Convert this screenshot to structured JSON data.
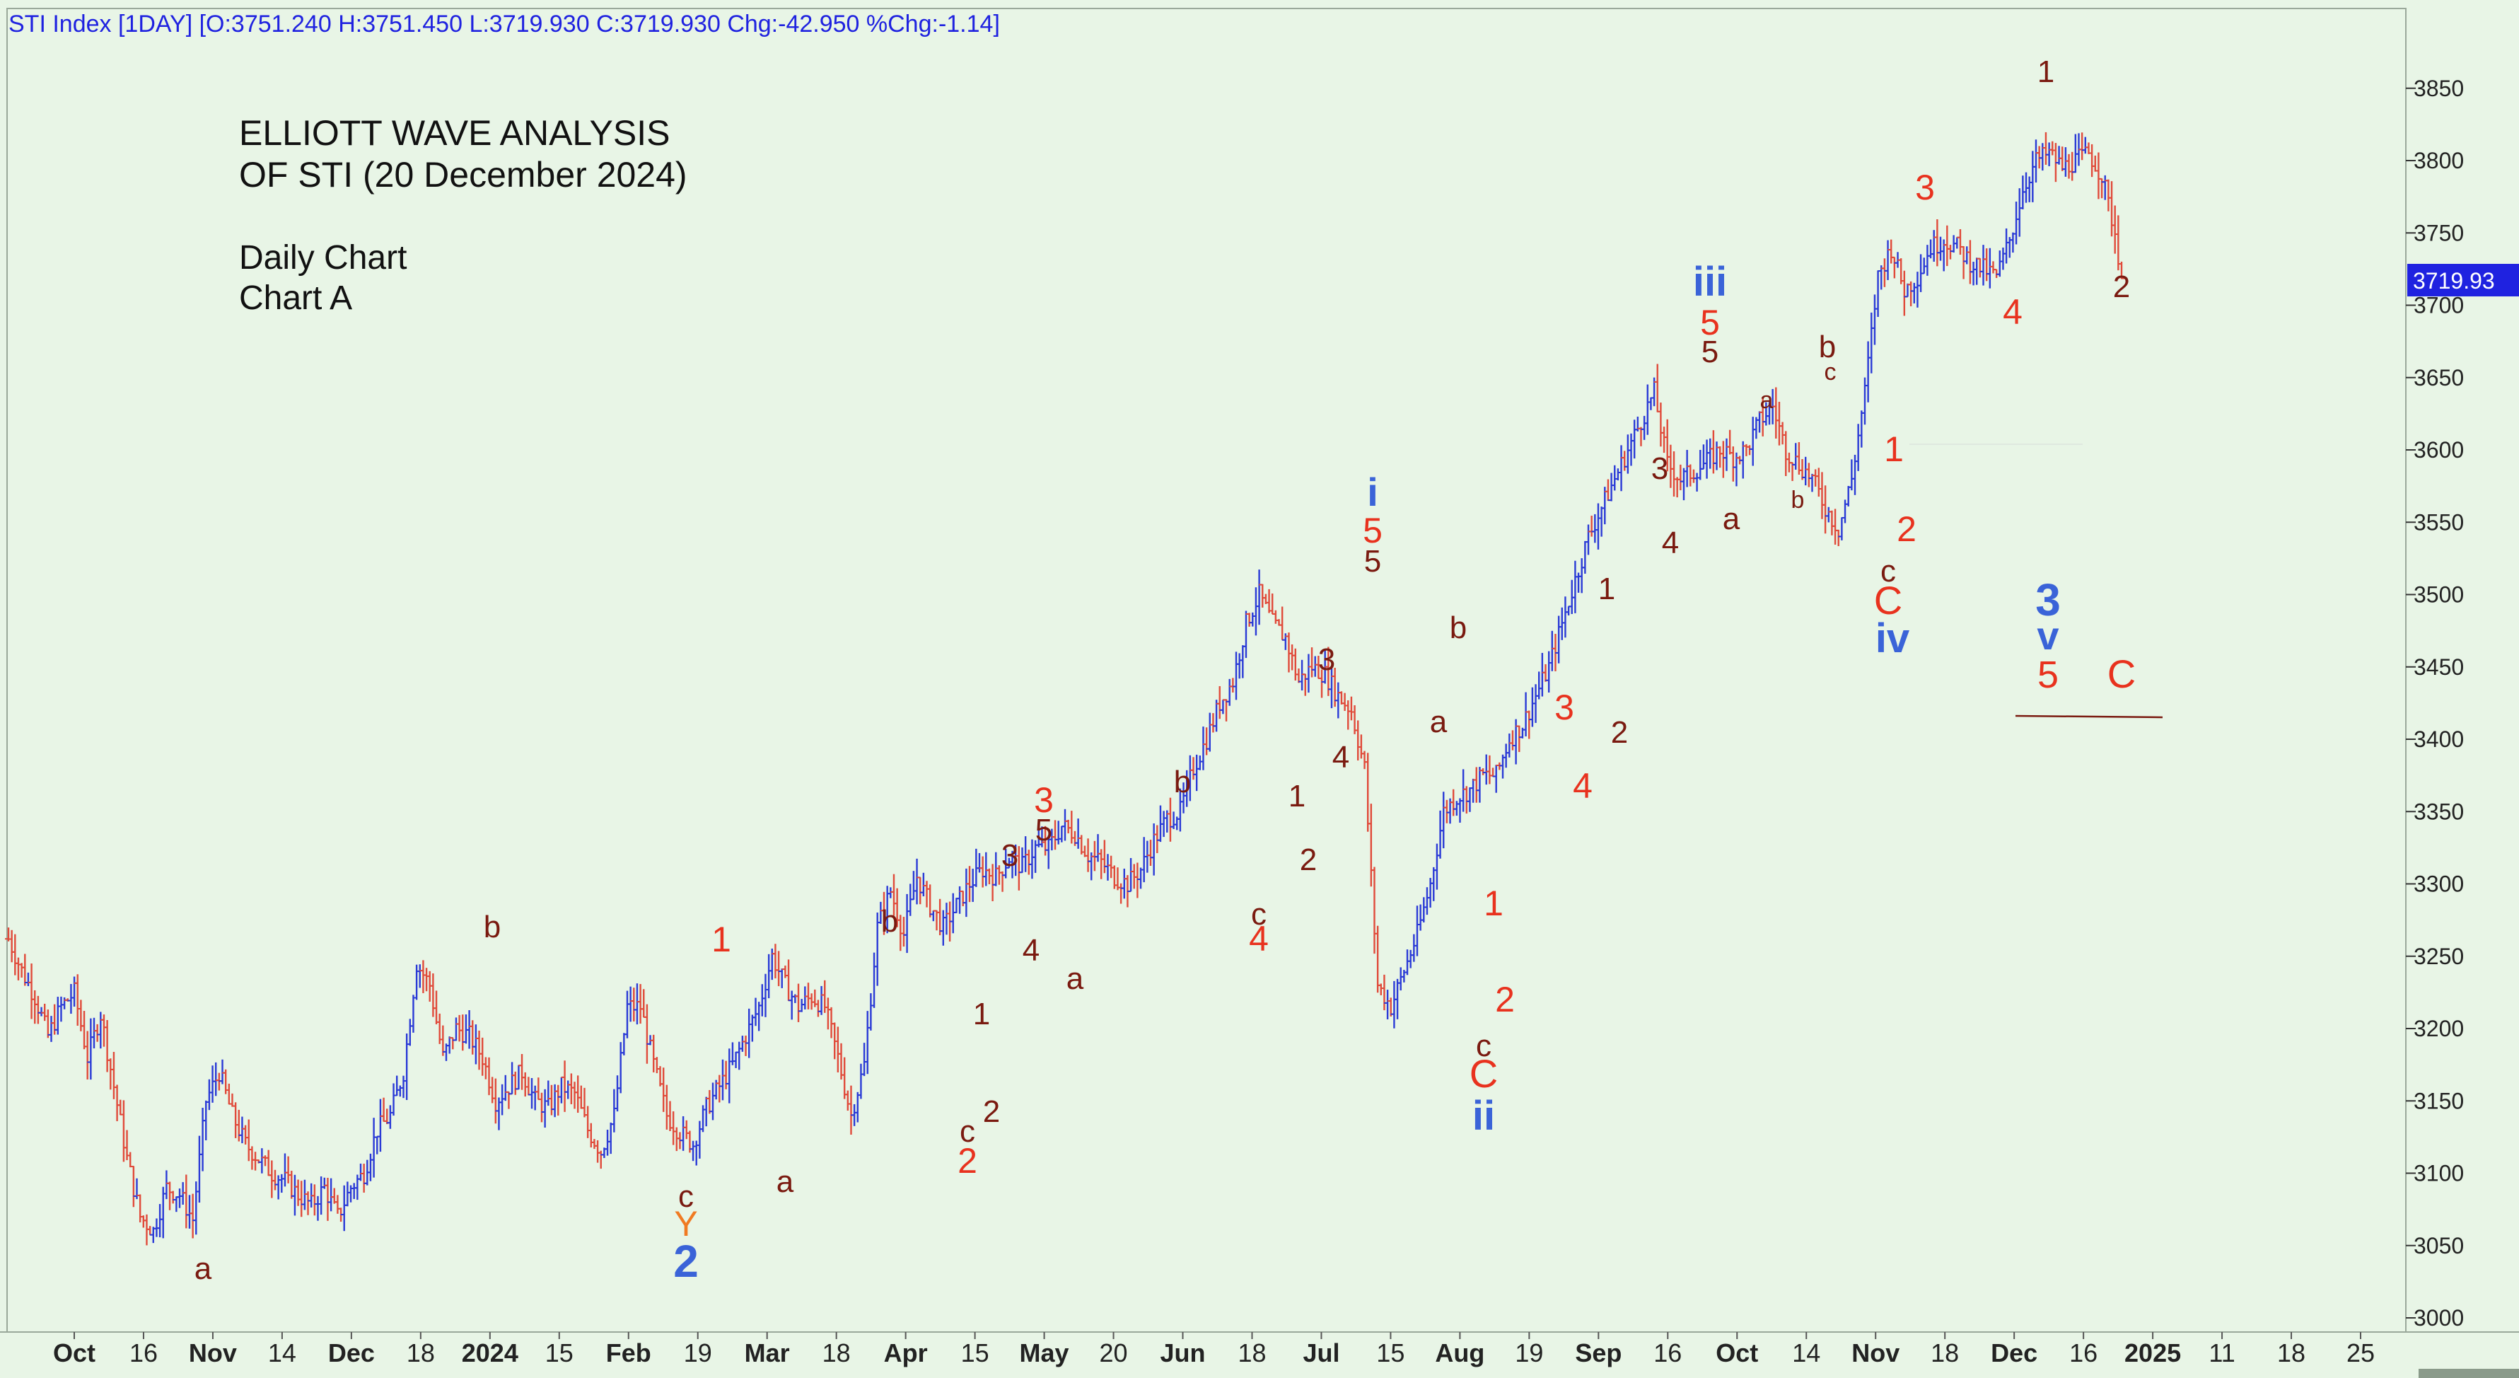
{
  "header": {
    "info": "STI Index [1DAY] [O:3751.240 H:3751.450 L:3719.930 C:3719.930 Chg:-42.950 %Chg:-1.14]"
  },
  "annotation_text": {
    "line1": "ELLIOTT WAVE ANALYSIS",
    "line2": "OF STI (20 December 2024)",
    "line3": "Daily Chart",
    "line4": "Chart A"
  },
  "last_price_tag": "3719.93",
  "colors": {
    "background": "#e8f5e6",
    "up_bar": "#2a3ad6",
    "down_bar": "#e04a3a",
    "label_dark": "#7a1a10",
    "label_red": "#e8321e",
    "label_blue": "#3a63d8",
    "label_orange": "#f07a22",
    "price_tag_bg": "#1f22e0",
    "header_text": "#1f22e0"
  },
  "chart_data": {
    "type": "ohlc",
    "title": "STI Index [1DAY]",
    "ylim": [
      3000,
      3880
    ],
    "y_ticks": [
      3000,
      3050,
      3100,
      3150,
      3200,
      3250,
      3300,
      3350,
      3400,
      3450,
      3500,
      3550,
      3600,
      3650,
      3700,
      3750,
      3800,
      3850
    ],
    "x_tick_labels": [
      {
        "label": "Oct",
        "bold": true
      },
      {
        "label": "16",
        "bold": false
      },
      {
        "label": "Nov",
        "bold": true
      },
      {
        "label": "14",
        "bold": false
      },
      {
        "label": "Dec",
        "bold": true
      },
      {
        "label": "18",
        "bold": false
      },
      {
        "label": "2024",
        "bold": true
      },
      {
        "label": "15",
        "bold": false
      },
      {
        "label": "Feb",
        "bold": true
      },
      {
        "label": "19",
        "bold": false
      },
      {
        "label": "Mar",
        "bold": true
      },
      {
        "label": "18",
        "bold": false
      },
      {
        "label": "Apr",
        "bold": true
      },
      {
        "label": "15",
        "bold": false
      },
      {
        "label": "May",
        "bold": true
      },
      {
        "label": "20",
        "bold": false
      },
      {
        "label": "Jun",
        "bold": true
      },
      {
        "label": "18",
        "bold": false
      },
      {
        "label": "Jul",
        "bold": true
      },
      {
        "label": "15",
        "bold": false
      },
      {
        "label": "Aug",
        "bold": true
      },
      {
        "label": "19",
        "bold": false
      },
      {
        "label": "Sep",
        "bold": true
      },
      {
        "label": "16",
        "bold": false
      },
      {
        "label": "Oct",
        "bold": true
      },
      {
        "label": "14",
        "bold": false
      },
      {
        "label": "Nov",
        "bold": true
      },
      {
        "label": "18",
        "bold": false
      },
      {
        "label": "Dec",
        "bold": true
      },
      {
        "label": "16",
        "bold": false
      },
      {
        "label": "2025",
        "bold": true
      },
      {
        "label": "11",
        "bold": false
      },
      {
        "label": "18",
        "bold": false
      },
      {
        "label": "25",
        "bold": false
      }
    ],
    "last_price": 3719.93,
    "path_points": [
      [
        0,
        3262
      ],
      [
        4,
        3240
      ],
      [
        8,
        3222
      ],
      [
        12,
        3195
      ],
      [
        16,
        3215
      ],
      [
        20,
        3225
      ],
      [
        24,
        3180
      ],
      [
        28,
        3210
      ],
      [
        32,
        3160
      ],
      [
        36,
        3110
      ],
      [
        40,
        3070
      ],
      [
        44,
        3060
      ],
      [
        48,
        3090
      ],
      [
        52,
        3085
      ],
      [
        56,
        3068
      ],
      [
        60,
        3150
      ],
      [
        64,
        3170
      ],
      [
        68,
        3140
      ],
      [
        72,
        3120
      ],
      [
        76,
        3110
      ],
      [
        80,
        3100
      ],
      [
        84,
        3095
      ],
      [
        88,
        3085
      ],
      [
        92,
        3078
      ],
      [
        96,
        3090
      ],
      [
        100,
        3070
      ],
      [
        104,
        3090
      ],
      [
        108,
        3100
      ],
      [
        112,
        3130
      ],
      [
        116,
        3140
      ],
      [
        120,
        3170
      ],
      [
        124,
        3245
      ],
      [
        128,
        3230
      ],
      [
        132,
        3180
      ],
      [
        136,
        3200
      ],
      [
        140,
        3195
      ],
      [
        144,
        3180
      ],
      [
        148,
        3150
      ],
      [
        152,
        3160
      ],
      [
        156,
        3170
      ],
      [
        160,
        3150
      ],
      [
        164,
        3145
      ],
      [
        168,
        3160
      ],
      [
        172,
        3155
      ],
      [
        176,
        3130
      ],
      [
        180,
        3115
      ],
      [
        184,
        3140
      ],
      [
        188,
        3215
      ],
      [
        192,
        3215
      ],
      [
        196,
        3175
      ],
      [
        200,
        3140
      ],
      [
        204,
        3128
      ],
      [
        208,
        3120
      ],
      [
        212,
        3145
      ],
      [
        216,
        3160
      ],
      [
        220,
        3175
      ],
      [
        224,
        3195
      ],
      [
        228,
        3215
      ],
      [
        232,
        3250
      ],
      [
        236,
        3230
      ],
      [
        240,
        3215
      ],
      [
        244,
        3222
      ],
      [
        248,
        3215
      ],
      [
        252,
        3180
      ],
      [
        256,
        3140
      ],
      [
        260,
        3175
      ],
      [
        264,
        3270
      ],
      [
        268,
        3295
      ],
      [
        272,
        3265
      ],
      [
        276,
        3305
      ],
      [
        280,
        3285
      ],
      [
        284,
        3270
      ],
      [
        288,
        3285
      ],
      [
        292,
        3300
      ],
      [
        296,
        3310
      ],
      [
        300,
        3305
      ],
      [
        304,
        3318
      ],
      [
        308,
        3312
      ],
      [
        312,
        3325
      ],
      [
        316,
        3325
      ],
      [
        320,
        3340
      ],
      [
        324,
        3335
      ],
      [
        328,
        3320
      ],
      [
        332,
        3315
      ],
      [
        336,
        3305
      ],
      [
        340,
        3300
      ],
      [
        344,
        3310
      ],
      [
        348,
        3330
      ],
      [
        352,
        3345
      ],
      [
        356,
        3350
      ],
      [
        360,
        3380
      ],
      [
        364,
        3400
      ],
      [
        368,
        3425
      ],
      [
        372,
        3440
      ],
      [
        376,
        3480
      ],
      [
        380,
        3500
      ],
      [
        384,
        3480
      ],
      [
        388,
        3470
      ],
      [
        392,
        3440
      ],
      [
        396,
        3450
      ],
      [
        400,
        3445
      ],
      [
        404,
        3430
      ],
      [
        408,
        3420
      ],
      [
        412,
        3380
      ],
      [
        416,
        3230
      ],
      [
        420,
        3215
      ],
      [
        424,
        3240
      ],
      [
        428,
        3265
      ],
      [
        432,
        3300
      ],
      [
        436,
        3350
      ],
      [
        440,
        3360
      ],
      [
        444,
        3365
      ],
      [
        448,
        3375
      ],
      [
        452,
        3375
      ],
      [
        456,
        3400
      ],
      [
        460,
        3410
      ],
      [
        464,
        3430
      ],
      [
        468,
        3450
      ],
      [
        472,
        3480
      ],
      [
        476,
        3510
      ],
      [
        480,
        3540
      ],
      [
        484,
        3560
      ],
      [
        488,
        3580
      ],
      [
        492,
        3600
      ],
      [
        496,
        3620
      ],
      [
        500,
        3640
      ],
      [
        504,
        3590
      ],
      [
        508,
        3580
      ],
      [
        512,
        3585
      ],
      [
        516,
        3592
      ],
      [
        520,
        3600
      ],
      [
        524,
        3595
      ],
      [
        528,
        3600
      ],
      [
        532,
        3620
      ],
      [
        536,
        3630
      ],
      [
        540,
        3600
      ],
      [
        544,
        3590
      ],
      [
        548,
        3580
      ],
      [
        552,
        3560
      ],
      [
        556,
        3545
      ],
      [
        560,
        3580
      ],
      [
        564,
        3640
      ],
      [
        568,
        3720
      ],
      [
        572,
        3740
      ],
      [
        576,
        3710
      ],
      [
        580,
        3720
      ],
      [
        584,
        3740
      ],
      [
        588,
        3745
      ],
      [
        592,
        3740
      ],
      [
        596,
        3730
      ],
      [
        600,
        3725
      ],
      [
        604,
        3720
      ],
      [
        608,
        3745
      ],
      [
        612,
        3780
      ],
      [
        616,
        3800
      ],
      [
        620,
        3805
      ],
      [
        624,
        3795
      ],
      [
        628,
        3800
      ],
      [
        632,
        3805
      ],
      [
        636,
        3790
      ],
      [
        640,
        3750
      ],
      [
        642,
        3720
      ]
    ],
    "wave_labels": [
      {
        "t": "a",
        "x": 287,
        "y": 1808,
        "c": "dark",
        "s": 44
      },
      {
        "t": "b",
        "x": 696,
        "y": 1325,
        "c": "dark",
        "s": 44
      },
      {
        "t": "c",
        "x": 970,
        "y": 1706,
        "c": "dark",
        "s": 44
      },
      {
        "t": "Y",
        "x": 970,
        "y": 1747,
        "c": "orange",
        "s": 50
      },
      {
        "t": "2",
        "x": 970,
        "y": 1805,
        "c": "blue",
        "s": 64,
        "b": true
      },
      {
        "t": "1",
        "x": 1020,
        "y": 1345,
        "c": "red",
        "s": 50
      },
      {
        "t": "a",
        "x": 1110,
        "y": 1685,
        "c": "dark",
        "s": 44
      },
      {
        "t": "b",
        "x": 1258,
        "y": 1317,
        "c": "dark",
        "s": 44
      },
      {
        "t": "1",
        "x": 1388,
        "y": 1448,
        "c": "dark",
        "s": 44
      },
      {
        "t": "2",
        "x": 1402,
        "y": 1586,
        "c": "dark",
        "s": 44
      },
      {
        "t": "c",
        "x": 1368,
        "y": 1614,
        "c": "dark",
        "s": 44
      },
      {
        "t": "2",
        "x": 1368,
        "y": 1658,
        "c": "red",
        "s": 50
      },
      {
        "t": "3",
        "x": 1428,
        "y": 1224,
        "c": "dark",
        "s": 44
      },
      {
        "t": "4",
        "x": 1458,
        "y": 1358,
        "c": "dark",
        "s": 44
      },
      {
        "t": "3",
        "x": 1476,
        "y": 1148,
        "c": "red",
        "s": 50
      },
      {
        "t": "5",
        "x": 1476,
        "y": 1188,
        "c": "dark",
        "s": 44
      },
      {
        "t": "a",
        "x": 1520,
        "y": 1398,
        "c": "dark",
        "s": 44
      },
      {
        "t": "b",
        "x": 1672,
        "y": 1120,
        "c": "dark",
        "s": 44
      },
      {
        "t": "c",
        "x": 1780,
        "y": 1307,
        "c": "dark",
        "s": 44
      },
      {
        "t": "4",
        "x": 1780,
        "y": 1344,
        "c": "red",
        "s": 50
      },
      {
        "t": "1",
        "x": 1834,
        "y": 1140,
        "c": "dark",
        "s": 44
      },
      {
        "t": "2",
        "x": 1850,
        "y": 1230,
        "c": "dark",
        "s": 44
      },
      {
        "t": "3",
        "x": 1876,
        "y": 947,
        "c": "dark",
        "s": 44
      },
      {
        "t": "4",
        "x": 1896,
        "y": 1085,
        "c": "dark",
        "s": 44
      },
      {
        "t": "i",
        "x": 1941,
        "y": 715,
        "c": "blue",
        "s": 56,
        "b": true
      },
      {
        "t": "5",
        "x": 1941,
        "y": 767,
        "c": "red",
        "s": 50
      },
      {
        "t": "5",
        "x": 1941,
        "y": 808,
        "c": "dark",
        "s": 44
      },
      {
        "t": "b",
        "x": 2062,
        "y": 902,
        "c": "dark",
        "s": 44
      },
      {
        "t": "a",
        "x": 2034,
        "y": 1035,
        "c": "dark",
        "s": 44
      },
      {
        "t": "c",
        "x": 2098,
        "y": 1493,
        "c": "dark",
        "s": 44
      },
      {
        "t": "C",
        "x": 2098,
        "y": 1537,
        "c": "red",
        "s": 56
      },
      {
        "t": "ii",
        "x": 2098,
        "y": 1597,
        "c": "blue",
        "s": 58,
        "b": true
      },
      {
        "t": "1",
        "x": 2112,
        "y": 1294,
        "c": "red",
        "s": 50
      },
      {
        "t": "2",
        "x": 2128,
        "y": 1430,
        "c": "red",
        "s": 50
      },
      {
        "t": "3",
        "x": 2212,
        "y": 1017,
        "c": "red",
        "s": 50
      },
      {
        "t": "4",
        "x": 2238,
        "y": 1128,
        "c": "red",
        "s": 50
      },
      {
        "t": "1",
        "x": 2272,
        "y": 847,
        "c": "dark",
        "s": 44
      },
      {
        "t": "2",
        "x": 2290,
        "y": 1050,
        "c": "dark",
        "s": 44
      },
      {
        "t": "3",
        "x": 2347,
        "y": 677,
        "c": "dark",
        "s": 44
      },
      {
        "t": "4",
        "x": 2362,
        "y": 782,
        "c": "dark",
        "s": 44
      },
      {
        "t": "iii",
        "x": 2418,
        "y": 418,
        "c": "blue",
        "s": 58,
        "b": true
      },
      {
        "t": "5",
        "x": 2418,
        "y": 473,
        "c": "red",
        "s": 50
      },
      {
        "t": "5",
        "x": 2418,
        "y": 512,
        "c": "dark",
        "s": 44
      },
      {
        "t": "a",
        "x": 2448,
        "y": 748,
        "c": "dark",
        "s": 44
      },
      {
        "t": "a",
        "x": 2498,
        "y": 577,
        "c": "dark",
        "s": 34
      },
      {
        "t": "b",
        "x": 2542,
        "y": 718,
        "c": "dark",
        "s": 34
      },
      {
        "t": "b",
        "x": 2584,
        "y": 505,
        "c": "dark",
        "s": 44
      },
      {
        "t": "c",
        "x": 2588,
        "y": 537,
        "c": "dark",
        "s": 34
      },
      {
        "t": "1",
        "x": 2678,
        "y": 652,
        "c": "red",
        "s": 50
      },
      {
        "t": "2",
        "x": 2696,
        "y": 765,
        "c": "red",
        "s": 50
      },
      {
        "t": "c",
        "x": 2670,
        "y": 822,
        "c": "dark",
        "s": 44
      },
      {
        "t": "C",
        "x": 2670,
        "y": 868,
        "c": "red",
        "s": 56
      },
      {
        "t": "iv",
        "x": 2676,
        "y": 922,
        "c": "blue",
        "s": 58,
        "b": true
      },
      {
        "t": "3",
        "x": 2722,
        "y": 282,
        "c": "red",
        "s": 50
      },
      {
        "t": "4",
        "x": 2846,
        "y": 458,
        "c": "red",
        "s": 50
      },
      {
        "t": "1",
        "x": 2893,
        "y": 116,
        "c": "dark",
        "s": 44
      },
      {
        "t": "2",
        "x": 3000,
        "y": 420,
        "c": "dark",
        "s": 44
      },
      {
        "t": "3",
        "x": 2896,
        "y": 870,
        "c": "blue",
        "s": 64,
        "b": true
      },
      {
        "t": "v",
        "x": 2896,
        "y": 918,
        "c": "blue",
        "s": 56,
        "b": true
      },
      {
        "t": "5",
        "x": 2896,
        "y": 972,
        "c": "red",
        "s": 54
      },
      {
        "t": "C",
        "x": 3000,
        "y": 972,
        "c": "red",
        "s": 56
      }
    ]
  }
}
